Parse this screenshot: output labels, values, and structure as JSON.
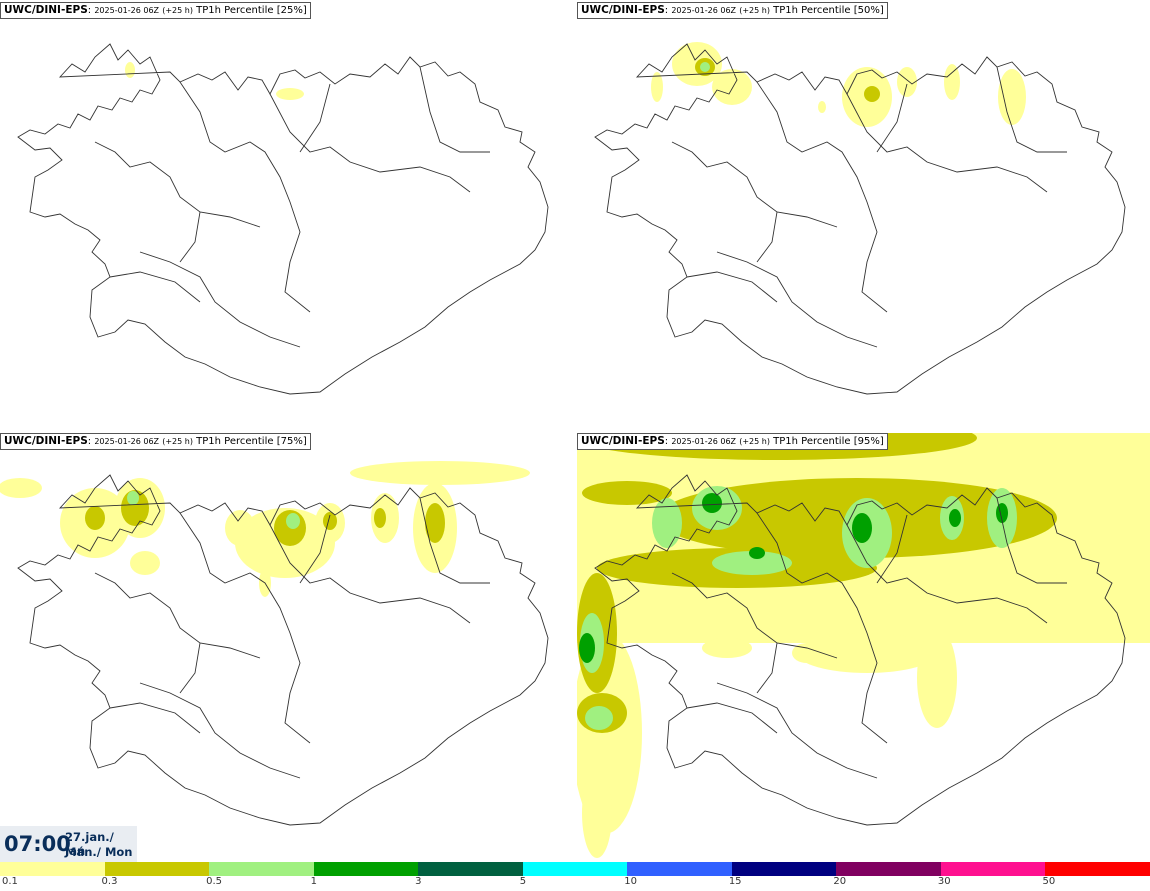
{
  "panels": [
    {
      "model": "UWC/DINI-EPS",
      "run": "2025-01-26 06Z",
      "lead": "(+25 h)",
      "product": "TP1h Percentile",
      "percentile": "[25%]"
    },
    {
      "model": "UWC/DINI-EPS",
      "run": "2025-01-26 06Z",
      "lead": "(+25 h)",
      "product": "TP1h Percentile",
      "percentile": "[50%]"
    },
    {
      "model": "UWC/DINI-EPS",
      "run": "2025-01-26 06Z",
      "lead": "(+25 h)",
      "product": "TP1h Percentile",
      "percentile": "[75%]"
    },
    {
      "model": "UWC/DINI-EPS",
      "run": "2025-01-26 06Z",
      "lead": "(+25 h)",
      "product": "TP1h Percentile",
      "percentile": "[95%]"
    }
  ],
  "valid": {
    "time": "07:00",
    "date_line1": "27.jan./ Jan",
    "date_line2": "Mán./ Mon"
  },
  "legend": {
    "colors": [
      "#ffff99",
      "#c8c800",
      "#a0f080",
      "#00a000",
      "#006040",
      "#00ffff",
      "#3060ff",
      "#000080",
      "#800060",
      "#ff1090",
      "#ff0000"
    ],
    "ticks": [
      "0.1",
      "0.3",
      "0.5",
      "1",
      "3",
      "5",
      "10",
      "15",
      "20",
      "30",
      "50"
    ]
  }
}
